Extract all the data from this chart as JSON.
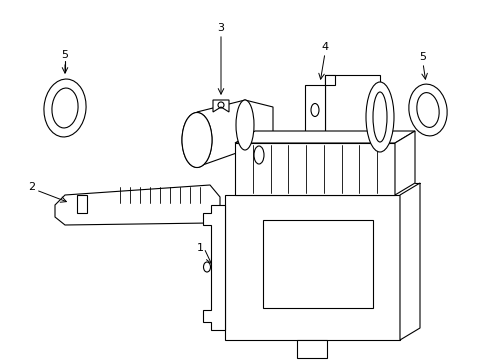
{
  "background_color": "#ffffff",
  "line_color": "#000000",
  "line_width": 0.8,
  "fig_width": 4.89,
  "fig_height": 3.6,
  "dpi": 100
}
